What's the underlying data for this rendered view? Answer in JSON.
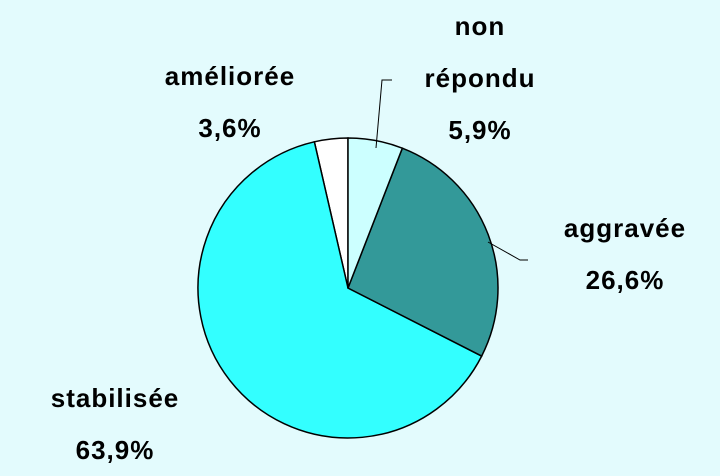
{
  "chart_data": {
    "type": "pie",
    "categories": [
      "non répondu",
      "aggravée",
      "stabilisée",
      "améliorée"
    ],
    "values": [
      5.9,
      26.6,
      63.9,
      3.6
    ],
    "value_labels": [
      "5,9%",
      "26,6%",
      "63,9%",
      "3,6%"
    ],
    "colors": [
      "#ccffff",
      "#339999",
      "#33ffff",
      "#ffffff"
    ]
  }
}
